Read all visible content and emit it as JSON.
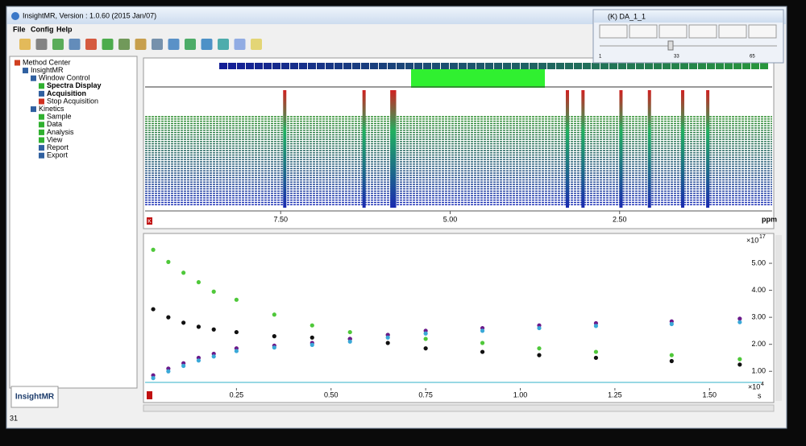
{
  "window": {
    "title": "InsightMR, Version : 1.0.60 (2015 Jan/07)"
  },
  "menu": [
    "File",
    "Config",
    "Help"
  ],
  "tree": [
    "Method Center",
    "InsightMR",
    "Window Control",
    "Spectra Display",
    "Acquisition",
    "Stop Acquisition",
    "Kinetics",
    "Sample",
    "Data",
    "Analysis",
    "View",
    "Report",
    "Export"
  ],
  "logo": "InsightMR",
  "status": "31",
  "player": {
    "title": "(K) DA_1_1",
    "slider_labels": [
      "1",
      "33",
      "65"
    ]
  },
  "spectrum": {
    "corner_label": "K",
    "x_label": "ppm",
    "xlim": [
      9.5,
      0.25
    ],
    "xticks": [
      {
        "value": 7.5,
        "label": "7.50"
      },
      {
        "value": 5,
        "label": "5.00"
      },
      {
        "value": 2.5,
        "label": "2.50"
      }
    ],
    "peaks": [
      7.44,
      6.27,
      5.86,
      5.82,
      3.27,
      3.04,
      2.48,
      2.06,
      1.57,
      1.2
    ]
  },
  "chart_data": {
    "type": "scatter",
    "x": [
      0.03,
      0.07,
      0.11,
      0.15,
      0.19,
      0.25,
      0.35,
      0.45,
      0.55,
      0.65,
      0.75,
      0.9,
      1.05,
      1.2,
      1.4,
      1.58
    ],
    "series": [
      {
        "color": "#4fc83a",
        "values": [
          5.5,
          5.05,
          4.65,
          4.3,
          3.95,
          3.65,
          3.1,
          2.7,
          2.45,
          2.35,
          2.2,
          2.05,
          1.85,
          1.72,
          1.6,
          1.45
        ]
      },
      {
        "color": "#111111",
        "values": [
          3.3,
          3.0,
          2.8,
          2.65,
          2.55,
          2.45,
          2.3,
          2.25,
          2.2,
          2.05,
          1.85,
          1.72,
          1.6,
          1.5,
          1.38,
          1.25
        ]
      },
      {
        "color": "#6a1a8a",
        "values": [
          0.85,
          1.1,
          1.3,
          1.5,
          1.65,
          1.85,
          1.95,
          2.05,
          2.2,
          2.35,
          2.5,
          2.6,
          2.7,
          2.78,
          2.85,
          2.95
        ]
      },
      {
        "color": "#3aa8d8",
        "values": [
          0.75,
          1.0,
          1.2,
          1.4,
          1.55,
          1.75,
          1.88,
          1.98,
          2.1,
          2.25,
          2.4,
          2.5,
          2.6,
          2.68,
          2.75,
          2.82
        ]
      }
    ],
    "xlim": [
      0,
      1.64
    ],
    "ylim": [
      0.5,
      6.0
    ],
    "xticks": [
      0.25,
      {
        "value": 0.5,
        "label": "0.50"
      },
      0.75,
      {
        "value": 1,
        "label": "1.00"
      },
      1.25,
      {
        "value": 1.5,
        "label": "1.50"
      }
    ],
    "yticks": [
      {
        "value": 1,
        "label": "1.00"
      },
      {
        "value": 2,
        "label": "2.00"
      },
      {
        "value": 3,
        "label": "3.00"
      },
      {
        "value": 4,
        "label": "4.00"
      },
      {
        "value": 5,
        "label": "5.00"
      }
    ],
    "x_unit": "s",
    "x_exponent": "×10",
    "x_exponent_power": "4",
    "y_exponent": "×10",
    "y_exponent_power": "17"
  }
}
